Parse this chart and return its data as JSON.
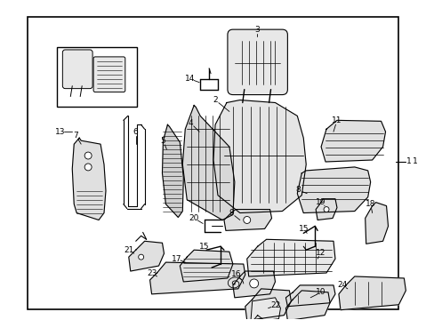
{
  "background_color": "#ffffff",
  "border_color": "#000000",
  "line_color": "#000000",
  "fig_width": 4.89,
  "fig_height": 3.6,
  "dpi": 100,
  "border": [
    0.06,
    0.05,
    0.92,
    0.97
  ]
}
